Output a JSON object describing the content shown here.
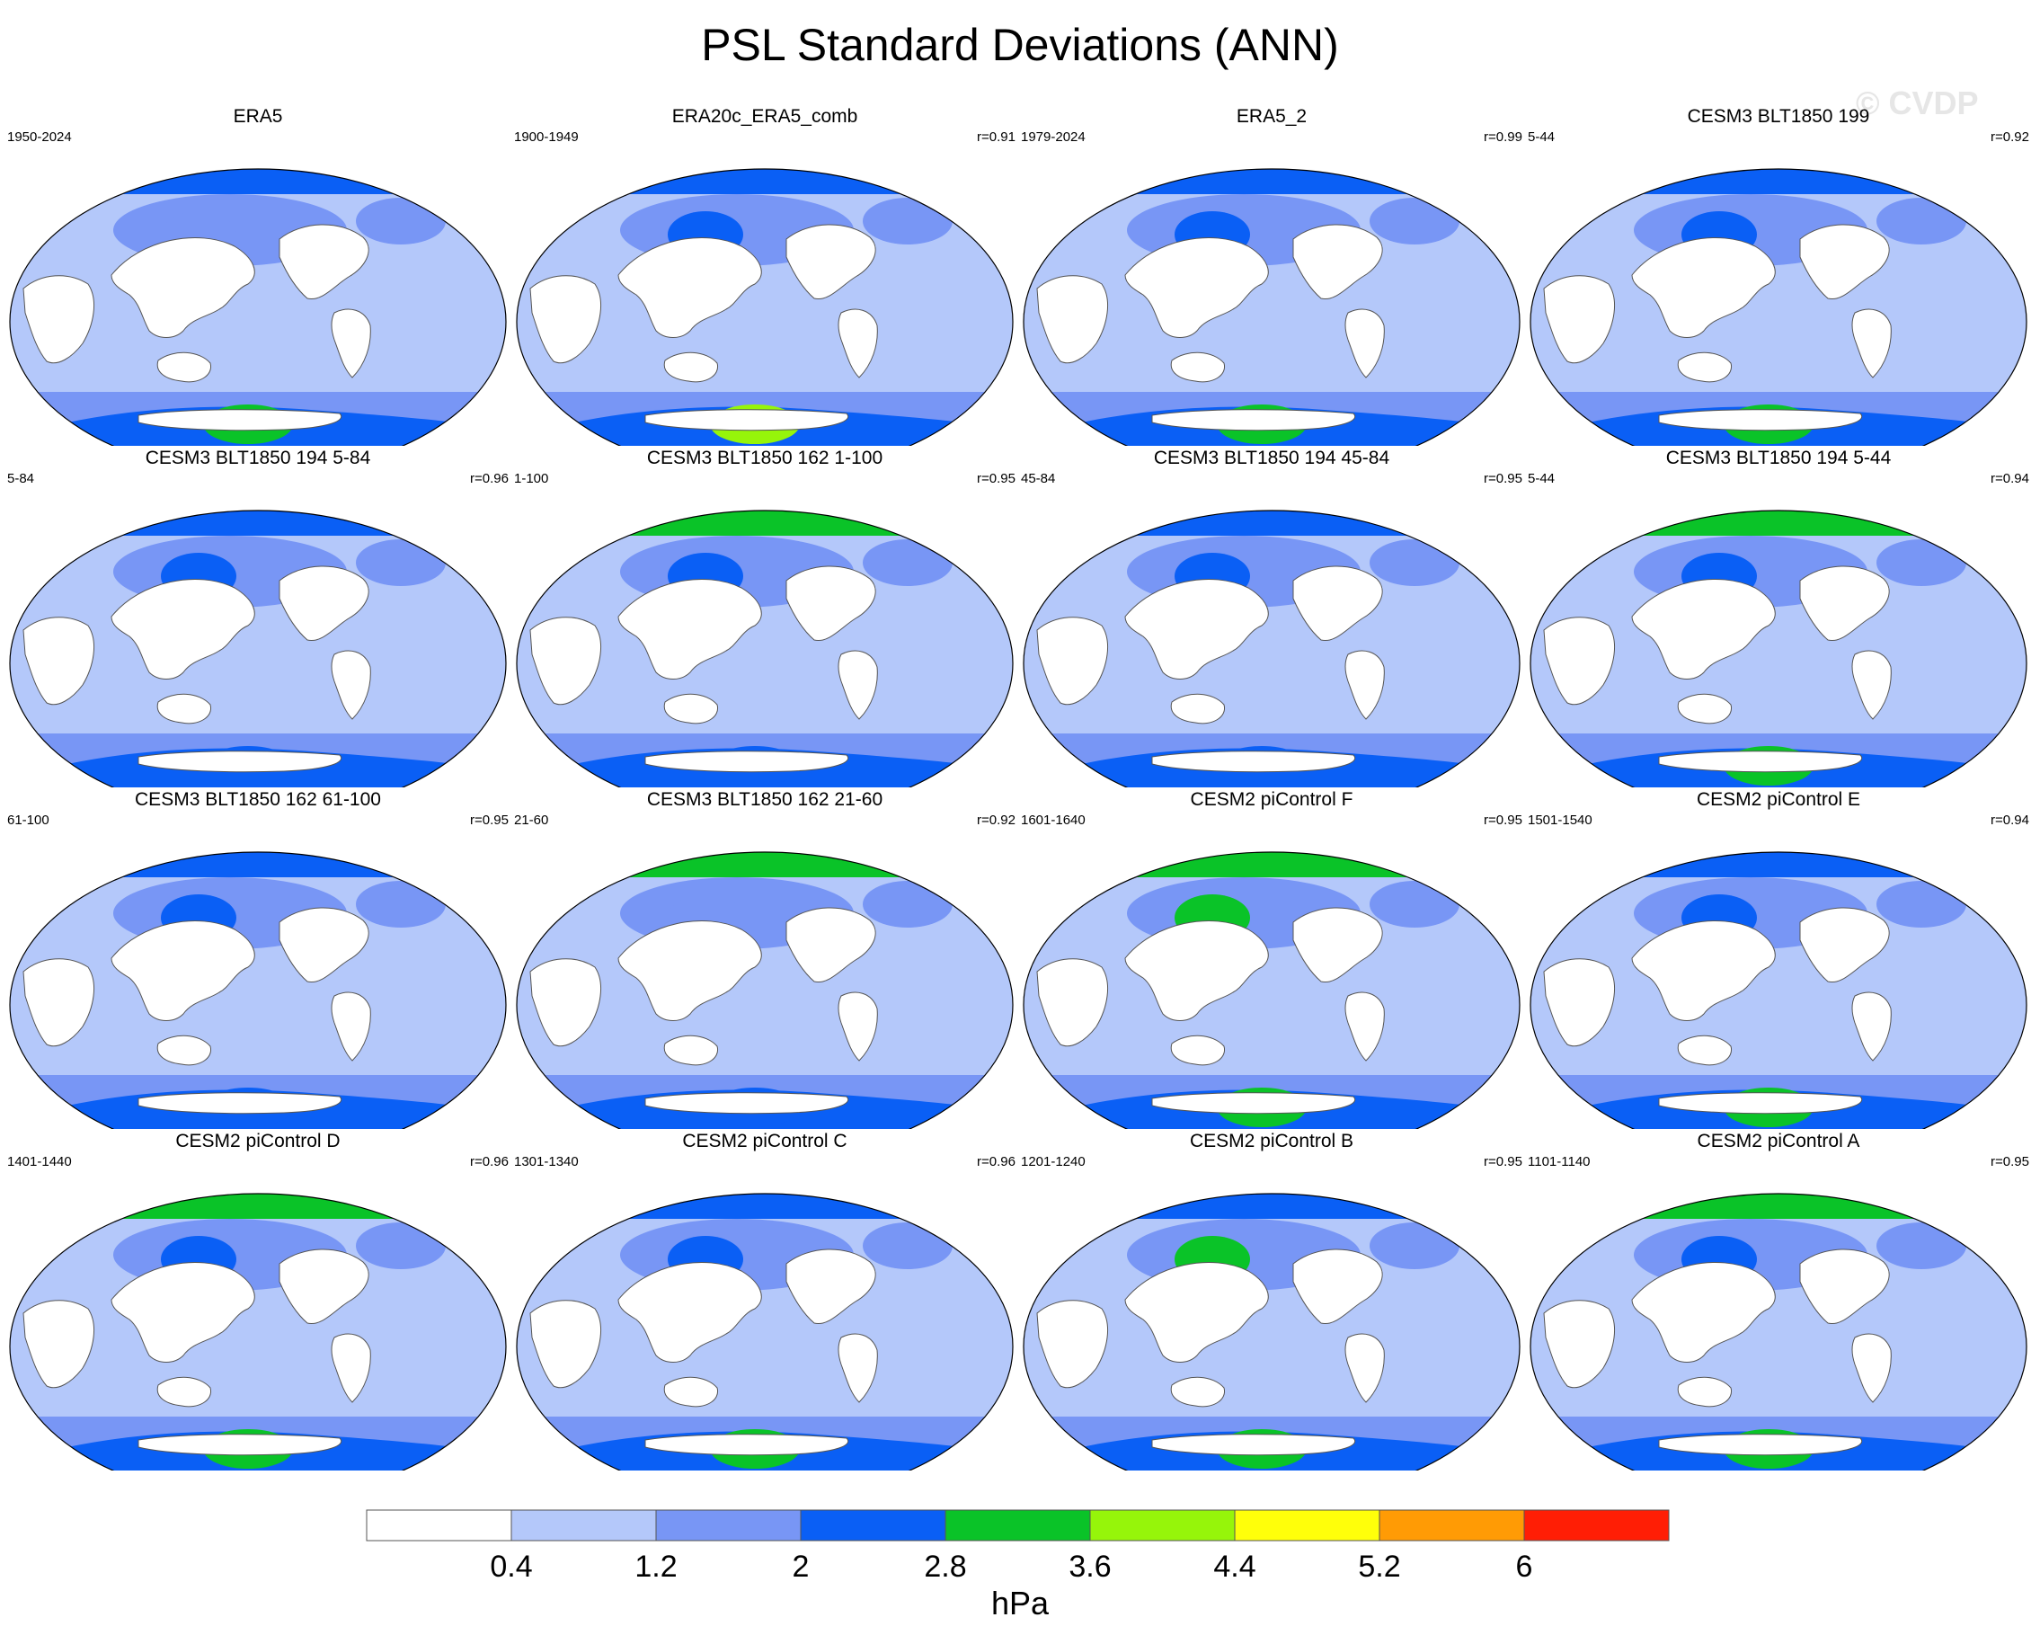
{
  "figure": {
    "title": "PSL Standard Deviations (ANN)",
    "watermark": "© CVDP"
  },
  "colorbar": {
    "label": "hPa",
    "ticks": [
      "0.4",
      "1.2",
      "2",
      "2.8",
      "3.6",
      "4.4",
      "5.2",
      "6"
    ],
    "colors": [
      "#ffffff",
      "#b4c8fa",
      "#7896f5",
      "#0a5ff5",
      "#0ac328",
      "#96f50a",
      "#ffff0a",
      "#ff9b05",
      "#ff1e05"
    ]
  },
  "land_color": "#ffffff",
  "coast_color": "#555555",
  "panels": [
    {
      "title": "ERA5",
      "years": "1950-2024",
      "corr": "",
      "z": {
        "np": 3,
        "nh": 2,
        "nhs": 2,
        "eq": 1,
        "sh": 2,
        "sh2": 3,
        "shc": 4
      }
    },
    {
      "title": "ERA20c_ERA5_comb",
      "years": "1900-1949",
      "corr": "r=0.91",
      "z": {
        "np": 3,
        "nh": 2,
        "nhs": 3,
        "eq": 1,
        "sh": 2,
        "sh2": 3,
        "shc": 5
      }
    },
    {
      "title": "ERA5_2",
      "years": "1979-2024",
      "corr": "r=0.99",
      "z": {
        "np": 3,
        "nh": 2,
        "nhs": 3,
        "eq": 1,
        "sh": 2,
        "sh2": 3,
        "shc": 4
      }
    },
    {
      "title": "CESM3 BLT1850 199",
      "years": "5-44",
      "corr": "r=0.92",
      "z": {
        "np": 3,
        "nh": 2,
        "nhs": 3,
        "eq": 1,
        "sh": 2,
        "sh2": 3,
        "shc": 4
      }
    },
    {
      "title": "CESM3 BLT1850 194 5-84",
      "years": "5-84",
      "corr": "r=0.96",
      "z": {
        "np": 3,
        "nh": 2,
        "nhs": 3,
        "eq": 1,
        "sh": 2,
        "sh2": 3,
        "shc": 3
      }
    },
    {
      "title": "CESM3 BLT1850 162 1-100",
      "years": "1-100",
      "corr": "r=0.95",
      "z": {
        "np": 4,
        "nh": 2,
        "nhs": 3,
        "eq": 1,
        "sh": 2,
        "sh2": 3,
        "shc": 3
      }
    },
    {
      "title": "CESM3 BLT1850 194 45-84",
      "years": "45-84",
      "corr": "r=0.95",
      "z": {
        "np": 3,
        "nh": 2,
        "nhs": 3,
        "eq": 1,
        "sh": 2,
        "sh2": 3,
        "shc": 3
      }
    },
    {
      "title": "CESM3 BLT1850 194 5-44",
      "years": "5-44",
      "corr": "r=0.94",
      "z": {
        "np": 4,
        "nh": 2,
        "nhs": 3,
        "eq": 1,
        "sh": 2,
        "sh2": 3,
        "shc": 4
      }
    },
    {
      "title": "CESM3 BLT1850 162 61-100",
      "years": "61-100",
      "corr": "r=0.95",
      "z": {
        "np": 3,
        "nh": 2,
        "nhs": 3,
        "eq": 1,
        "sh": 2,
        "sh2": 3,
        "shc": 3
      }
    },
    {
      "title": "CESM3 BLT1850 162 21-60",
      "years": "21-60",
      "corr": "r=0.92",
      "z": {
        "np": 4,
        "nh": 2,
        "nhs": 2,
        "eq": 1,
        "sh": 2,
        "sh2": 3,
        "shc": 3
      }
    },
    {
      "title": "CESM2 piControl F",
      "years": "1601-1640",
      "corr": "r=0.95",
      "z": {
        "np": 4,
        "nh": 2,
        "nhs": 4,
        "eq": 1,
        "sh": 2,
        "sh2": 3,
        "shc": 4
      }
    },
    {
      "title": "CESM2 piControl E",
      "years": "1501-1540",
      "corr": "r=0.94",
      "z": {
        "np": 3,
        "nh": 2,
        "nhs": 3,
        "eq": 1,
        "sh": 2,
        "sh2": 3,
        "shc": 4
      }
    },
    {
      "title": "CESM2 piControl D",
      "years": "1401-1440",
      "corr": "r=0.96",
      "z": {
        "np": 4,
        "nh": 2,
        "nhs": 3,
        "eq": 1,
        "sh": 2,
        "sh2": 3,
        "shc": 4
      }
    },
    {
      "title": "CESM2 piControl C",
      "years": "1301-1340",
      "corr": "r=0.96",
      "z": {
        "np": 3,
        "nh": 2,
        "nhs": 3,
        "eq": 1,
        "sh": 2,
        "sh2": 3,
        "shc": 4
      }
    },
    {
      "title": "CESM2 piControl B",
      "years": "1201-1240",
      "corr": "r=0.95",
      "z": {
        "np": 3,
        "nh": 2,
        "nhs": 4,
        "eq": 1,
        "sh": 2,
        "sh2": 3,
        "shc": 4
      }
    },
    {
      "title": "CESM2 piControl A",
      "years": "1101-1140",
      "corr": "r=0.95",
      "z": {
        "np": 4,
        "nh": 2,
        "nhs": 3,
        "eq": 1,
        "sh": 2,
        "sh2": 3,
        "shc": 4
      }
    }
  ]
}
